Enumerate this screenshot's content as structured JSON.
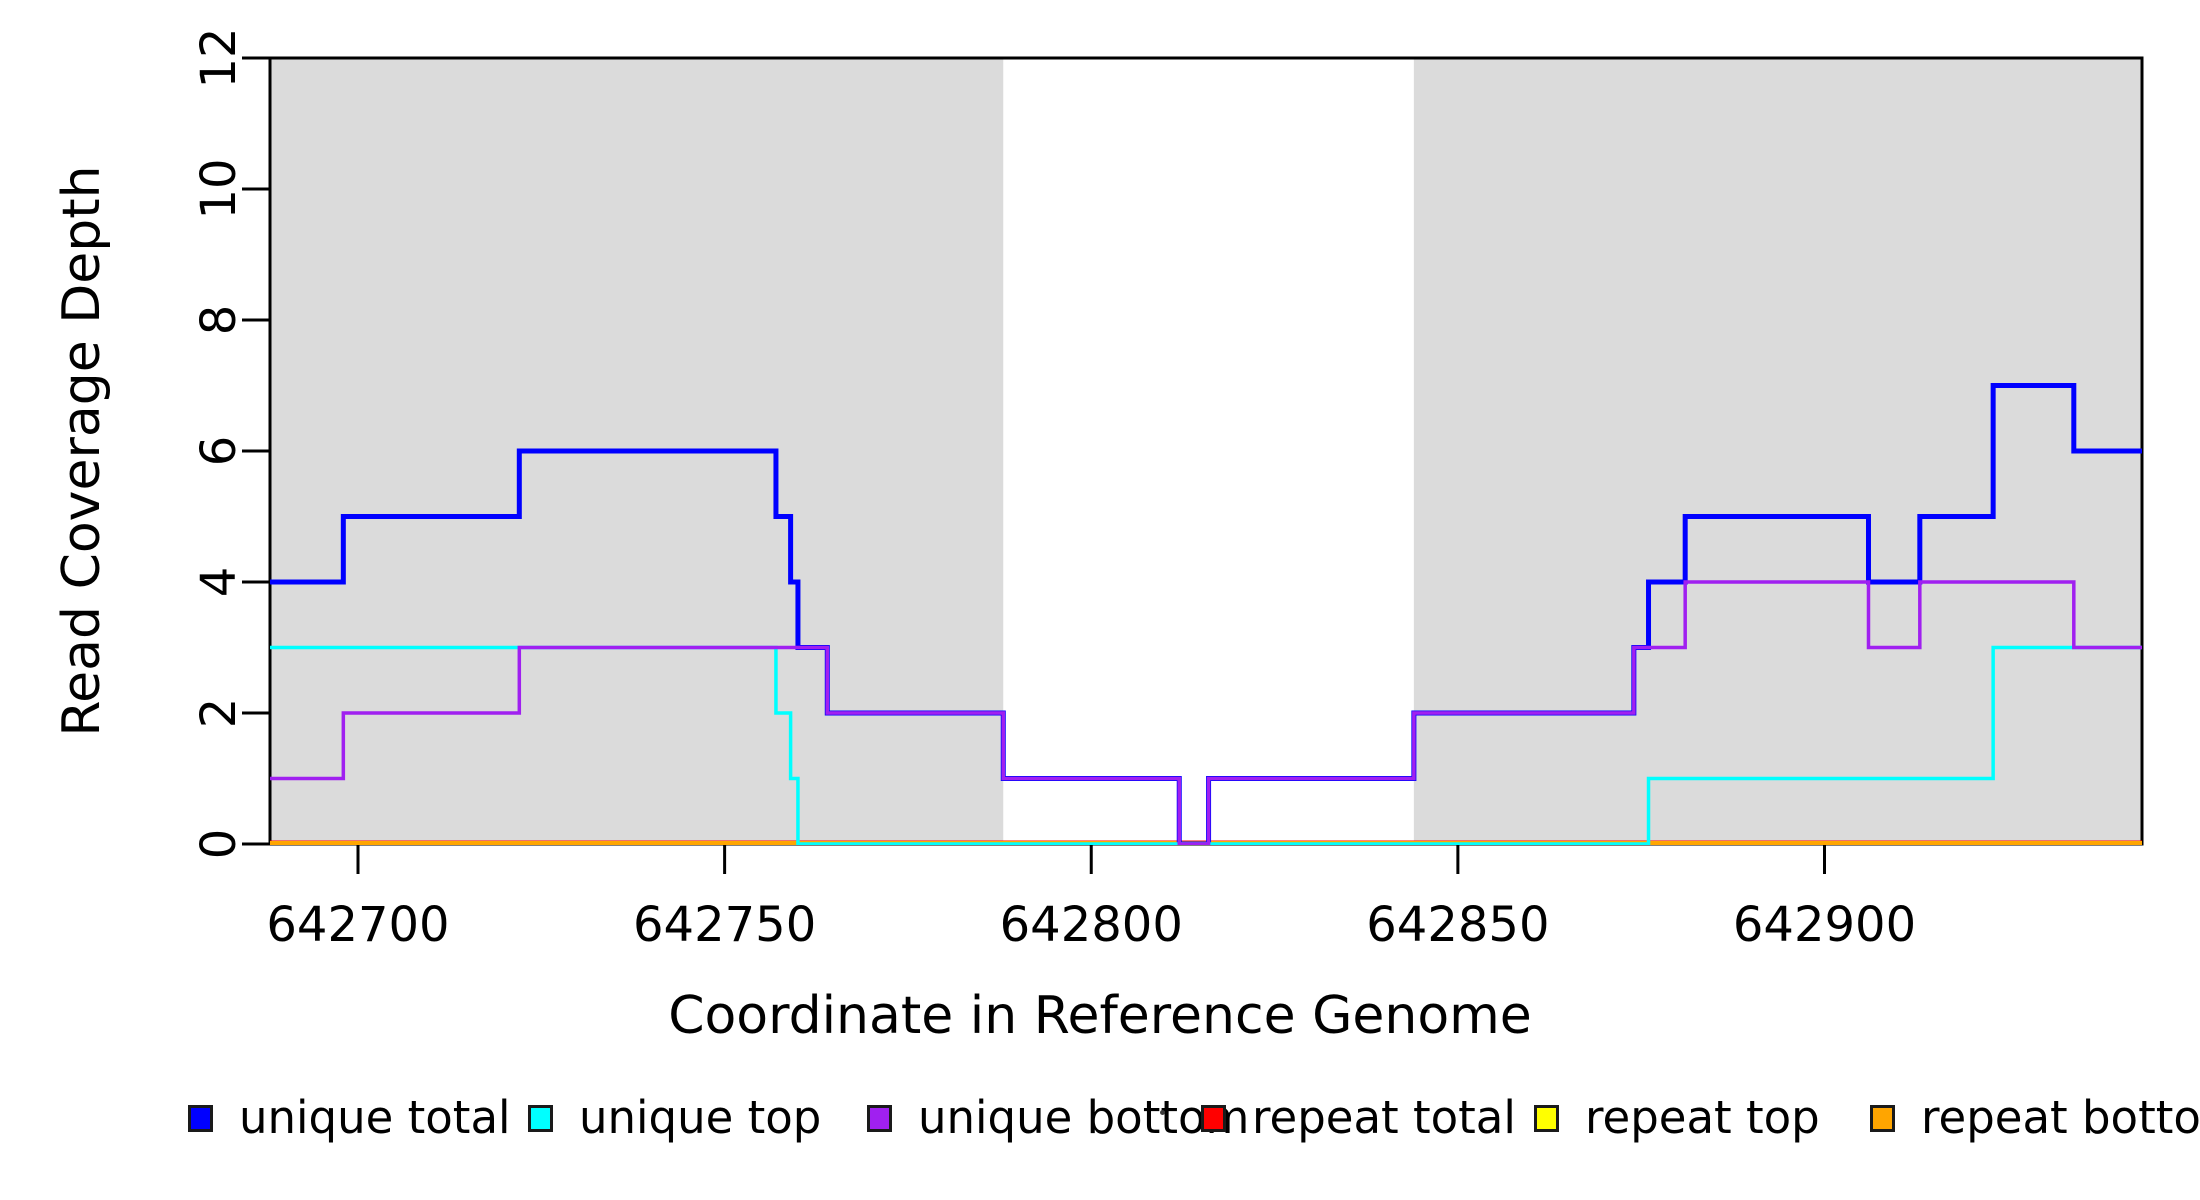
{
  "chart_data": {
    "type": "line",
    "subtype": "step-after-coverage",
    "title": "",
    "xlabel": "Coordinate in Reference Genome",
    "ylabel": "Read Coverage Depth",
    "xlim": [
      642688,
      642943.3
    ],
    "ylim": [
      0,
      12
    ],
    "x_ticks": [
      642700,
      642750,
      642800,
      642850,
      642900
    ],
    "y_ticks": [
      0,
      2,
      4,
      6,
      8,
      10,
      12
    ],
    "grid": false,
    "background_color": "#FFFFFF",
    "axis_color": "#000000",
    "shaded_band_color": "#DBDBDB",
    "shaded_regions": [
      {
        "x0": 642688,
        "x1": 642788
      },
      {
        "x0": 642844,
        "x1": 642943.3
      }
    ],
    "x_end": 642943.3,
    "series": [
      {
        "name": "repeat total",
        "color": "#FF0000",
        "points": [
          [
            642688,
            0
          ]
        ]
      },
      {
        "name": "repeat top",
        "color": "#FFFF00",
        "points": [
          [
            642688,
            0
          ]
        ]
      },
      {
        "name": "repeat bottom",
        "color": "#FFA500",
        "points": [
          [
            642688,
            0
          ]
        ]
      },
      {
        "name": "unique total",
        "color": "#0000FF",
        "points": [
          [
            642688,
            4
          ],
          [
            642698,
            5
          ],
          [
            642722,
            6
          ],
          [
            642757,
            5
          ],
          [
            642759,
            4
          ],
          [
            642760,
            3
          ],
          [
            642764,
            2
          ],
          [
            642788,
            1
          ],
          [
            642812,
            0
          ],
          [
            642816,
            1
          ],
          [
            642844,
            2
          ],
          [
            642874,
            3
          ],
          [
            642876,
            4
          ],
          [
            642881,
            5
          ],
          [
            642906,
            4
          ],
          [
            642913,
            5
          ],
          [
            642923,
            7
          ],
          [
            642934,
            6
          ]
        ]
      },
      {
        "name": "unique top",
        "color": "#00FFFF",
        "points": [
          [
            642688,
            3
          ],
          [
            642757,
            2
          ],
          [
            642759,
            1
          ],
          [
            642760,
            0
          ],
          [
            642876,
            1
          ],
          [
            642923,
            3
          ]
        ]
      },
      {
        "name": "unique bottom",
        "color": "#A020F0",
        "points": [
          [
            642688,
            1
          ],
          [
            642698,
            2
          ],
          [
            642722,
            3
          ],
          [
            642764,
            2
          ],
          [
            642788,
            1
          ],
          [
            642812,
            0
          ],
          [
            642816,
            1
          ],
          [
            642844,
            2
          ],
          [
            642874,
            3
          ],
          [
            642881,
            4
          ],
          [
            642906,
            3
          ],
          [
            642913,
            4
          ],
          [
            642934,
            3
          ]
        ]
      }
    ],
    "legend": [
      {
        "label": "unique total",
        "color": "#0000FF"
      },
      {
        "label": "unique top",
        "color": "#00FFFF"
      },
      {
        "label": "unique bottom",
        "color": "#A020F0"
      },
      {
        "label": "repeat total",
        "color": "#FF0000"
      },
      {
        "label": "repeat top",
        "color": "#FFFF00"
      },
      {
        "label": "repeat bottom",
        "color": "#FFA500"
      }
    ],
    "legend_position": "bottom"
  }
}
